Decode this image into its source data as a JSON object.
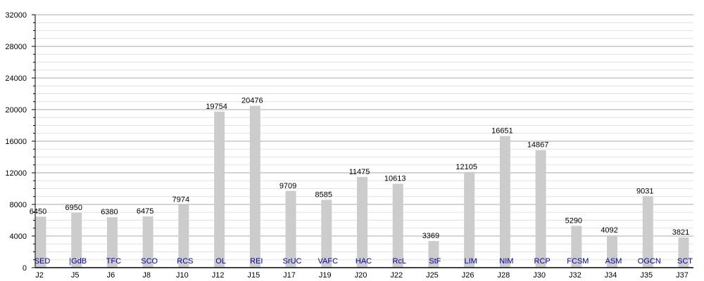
{
  "chart_data": {
    "type": "bar",
    "categories": [
      "J2",
      "J5",
      "J6",
      "J8",
      "J10",
      "J12",
      "J15",
      "J17",
      "J19",
      "J20",
      "J22",
      "J25",
      "J26",
      "J28",
      "J30",
      "J32",
      "J34",
      "J35",
      "J37"
    ],
    "bar_labels": [
      "SED",
      "|GdB",
      "TFC",
      "SCO",
      "RCS",
      "OL",
      "REI",
      "SrUC",
      "VAFC",
      "HAC",
      "RcL",
      "StF",
      "LIM",
      "NIM",
      "RCP",
      "FCSM",
      "ASM",
      "OGCN",
      "SCT"
    ],
    "values": [
      6450,
      6950,
      6380,
      6475,
      7974,
      19754,
      20476,
      9709,
      8585,
      11475,
      10613,
      3369,
      12105,
      16651,
      14867,
      5290,
      4092,
      9031,
      3821
    ],
    "title": "",
    "xlabel": "",
    "ylabel": "",
    "ylim": [
      0,
      32000
    ],
    "yticks": [
      0,
      4000,
      8000,
      12000,
      16000,
      20000,
      24000,
      28000,
      32000
    ],
    "grid": true,
    "colors": {
      "bar": "#cccccc",
      "bar_label": "#0000a0",
      "major_grid": "#aaaaaa",
      "minor_grid": "#e2e2e2"
    }
  }
}
